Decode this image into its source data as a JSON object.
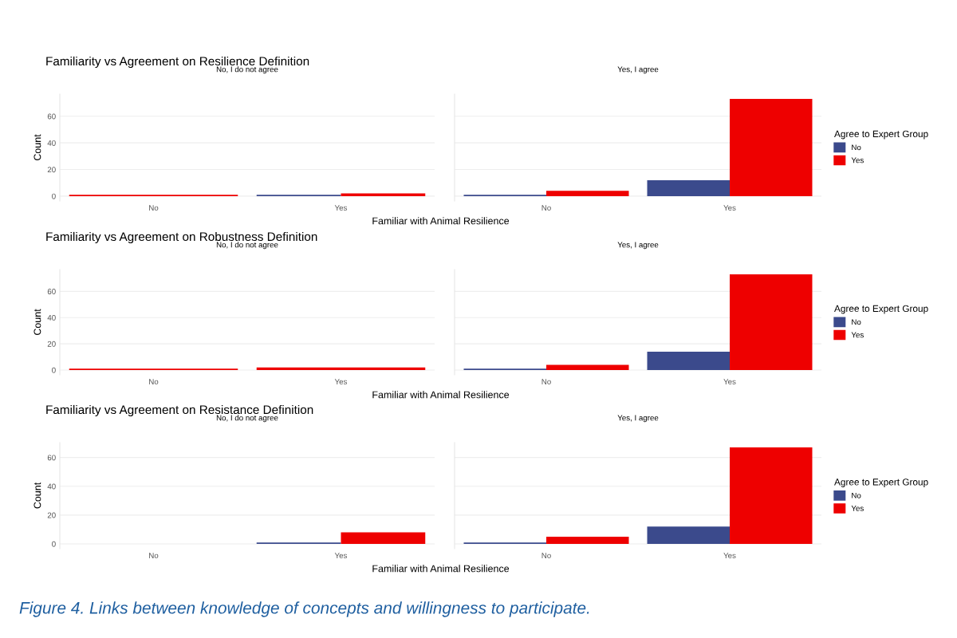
{
  "chart_data": [
    {
      "type": "bar",
      "title": "Familiarity vs Agreement on Resilience Definition",
      "subtitle": "No, I do not agree",
      "xlabel": "Familiar with Animal Resilience",
      "ylabel": "Count",
      "categories": [
        "No",
        "Yes"
      ],
      "series": [
        {
          "color": "#3b4a8c",
          "values": [
            null,
            1
          ]
        },
        {
          "color": "#ee0000",
          "values": [
            1,
            2
          ]
        }
      ],
      "ylim": [
        -3.65,
        76.65
      ],
      "yticks": [
        0,
        20,
        40,
        60
      ],
      "grid": "y",
      "legend": false
    },
    {
      "type": "bar",
      "subtitle": "Yes, I agree",
      "categories": [
        "No",
        "Yes"
      ],
      "series": [
        {
          "name": "No",
          "color": "#3b4a8c",
          "values": [
            1,
            12
          ]
        },
        {
          "name": "Yes",
          "color": "#ee0000",
          "values": [
            4,
            73
          ]
        }
      ],
      "ylim": [
        -3.65,
        76.65
      ],
      "yticks": [
        0,
        20,
        40,
        60
      ],
      "grid": "y",
      "legend": "right",
      "legend_title": "Agree to Expert Group",
      "tick_labels": "x"
    },
    {
      "type": "bar",
      "title": "Familiarity vs Agreement on Robustness Definition",
      "subtitle": "No, I do not agree",
      "xlabel": "Familiar with Animal Resilience",
      "ylabel": "Count",
      "categories": [
        "No",
        "Yes"
      ],
      "series": [
        {
          "color": "#ee0000",
          "values": [
            1,
            2
          ]
        }
      ],
      "ylim": [
        -3.65,
        76.65
      ],
      "yticks": [
        0,
        20,
        40,
        60
      ],
      "grid": "y",
      "legend": false
    },
    {
      "type": "bar",
      "subtitle": "Yes, I agree",
      "categories": [
        "No",
        "Yes"
      ],
      "series": [
        {
          "name": "No",
          "color": "#3b4a8c",
          "values": [
            1,
            14
          ]
        },
        {
          "name": "Yes",
          "color": "#ee0000",
          "values": [
            4,
            73
          ]
        }
      ],
      "ylim": [
        -3.65,
        76.65
      ],
      "yticks": [
        0,
        20,
        40,
        60
      ],
      "grid": "y",
      "legend": "right",
      "legend_title": "Agree to Expert Group",
      "tick_labels": "x"
    },
    {
      "type": "bar",
      "title": "Familiarity vs Agreement on Resistance Definition",
      "subtitle": "No, I do not agree",
      "xlabel": "Familiar with Animal Resilience",
      "ylabel": "Count",
      "categories": [
        "No",
        "Yes"
      ],
      "series": [
        {
          "color": "#3b4a8c",
          "values": [
            null,
            1
          ]
        },
        {
          "color": "#ee0000",
          "values": [
            null,
            8
          ]
        }
      ],
      "ylim": [
        -3.35,
        70.35
      ],
      "yticks": [
        0,
        20,
        40,
        60
      ],
      "grid": "y",
      "legend": false
    },
    {
      "type": "bar",
      "subtitle": "Yes, I agree",
      "categories": [
        "No",
        "Yes"
      ],
      "series": [
        {
          "name": "No",
          "color": "#3b4a8c",
          "values": [
            1,
            12
          ]
        },
        {
          "name": "Yes",
          "color": "#ee0000",
          "values": [
            5,
            67
          ]
        }
      ],
      "ylim": [
        -3.35,
        70.35
      ],
      "yticks": [
        0,
        20,
        40,
        60
      ],
      "grid": "y",
      "legend": "right",
      "legend_title": "Agree to Expert Group",
      "tick_labels": "x",
      "annotations": [
        "Figure 4. Links between knowledge of concepts and willingness to participate."
      ]
    }
  ]
}
